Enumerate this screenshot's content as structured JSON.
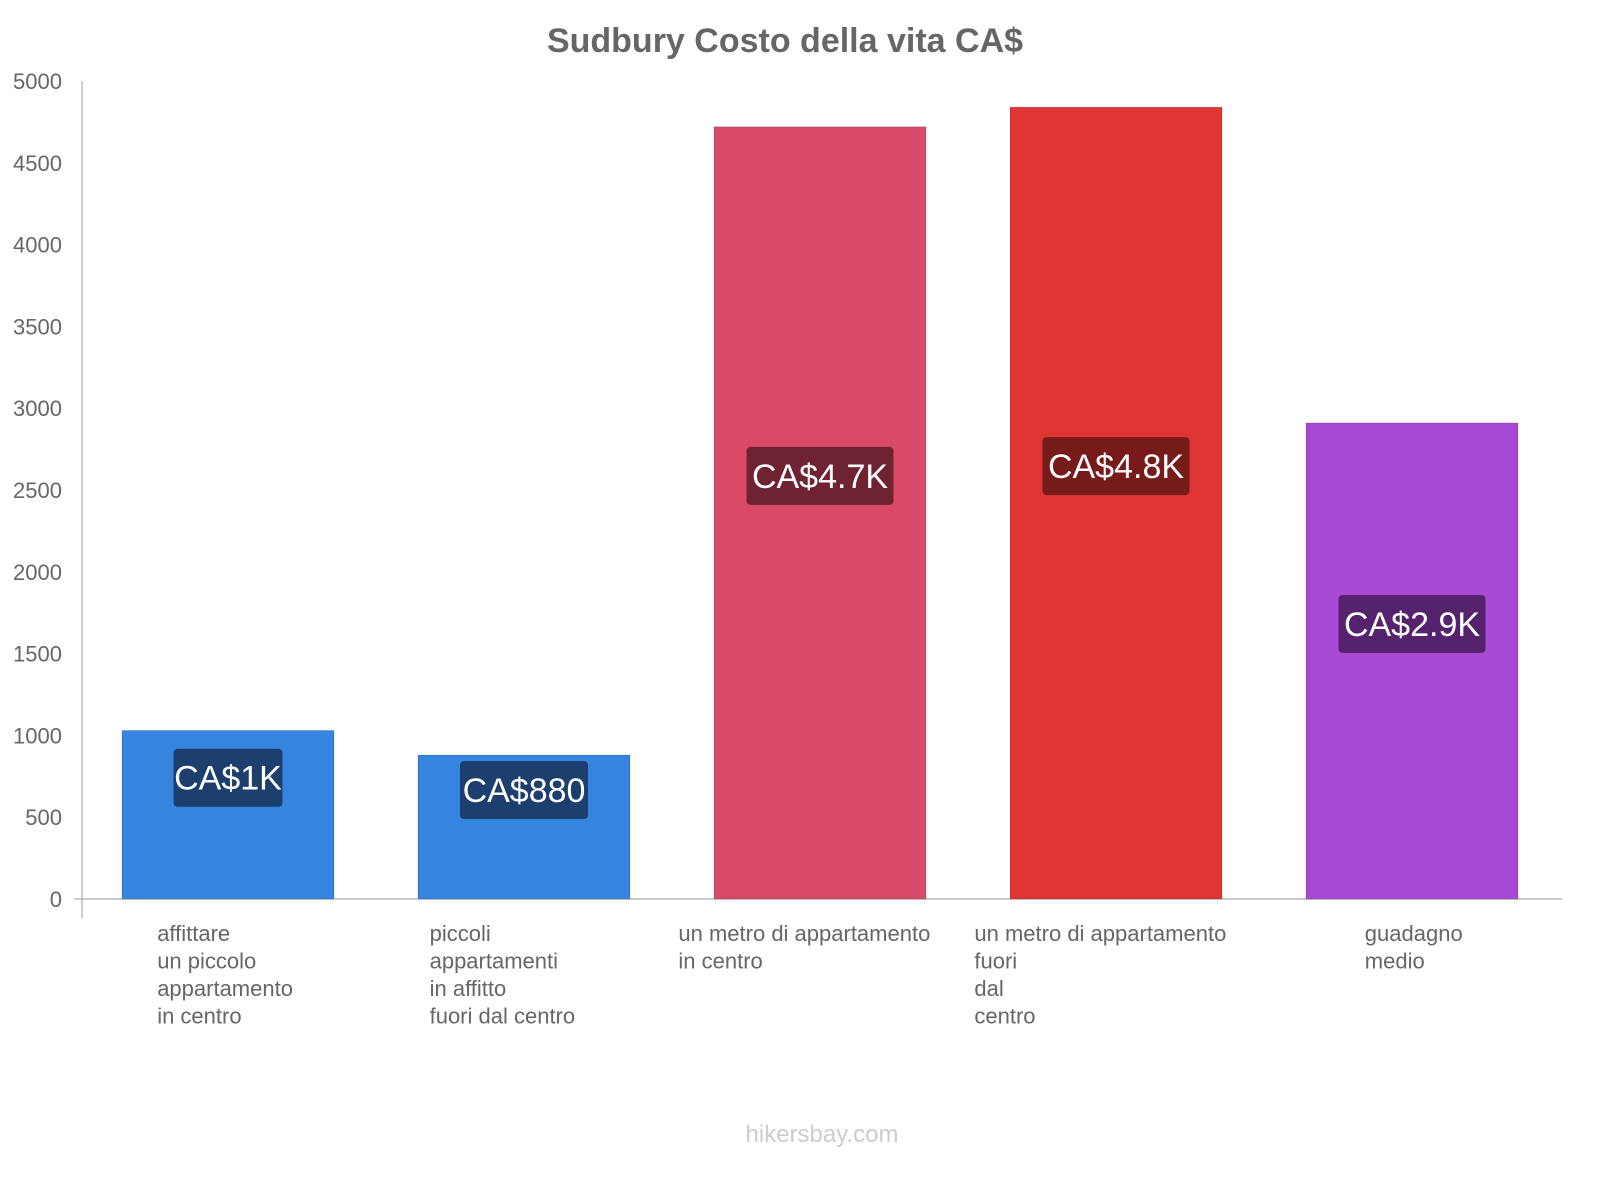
{
  "chart_data": {
    "type": "bar",
    "title": "Sudbury Costo della vita CA$",
    "xlabel": "",
    "ylabel": "",
    "ylim": [
      0,
      5000
    ],
    "yticks": [
      0,
      500,
      1000,
      1500,
      2000,
      2500,
      3000,
      3500,
      4000,
      4500,
      5000
    ],
    "grid": false,
    "categories": [
      [
        "affittare",
        "un piccolo",
        "appartamento",
        "in centro"
      ],
      [
        "piccoli",
        "appartamenti",
        "in affitto",
        "fuori dal centro"
      ],
      [
        "un metro di appartamento",
        "in centro"
      ],
      [
        "un metro di appartamento",
        "fuori",
        "dal",
        "centro"
      ],
      [
        "guadagno",
        "medio"
      ]
    ],
    "values": [
      1030,
      880,
      4720,
      4840,
      2910
    ],
    "data_labels": [
      "CA$1K",
      "CA$880",
      "CA$4.7K",
      "CA$4.8K",
      "CA$2.9K"
    ],
    "colors": [
      "#3584e0",
      "#3584e0",
      "#d94a68",
      "#e03535",
      "#a94ad6"
    ],
    "label_colors": [
      "#1d3f6e",
      "#1d3f6e",
      "#6e2232",
      "#761a1a",
      "#55226d"
    ]
  },
  "footer": "hikersbay.com"
}
